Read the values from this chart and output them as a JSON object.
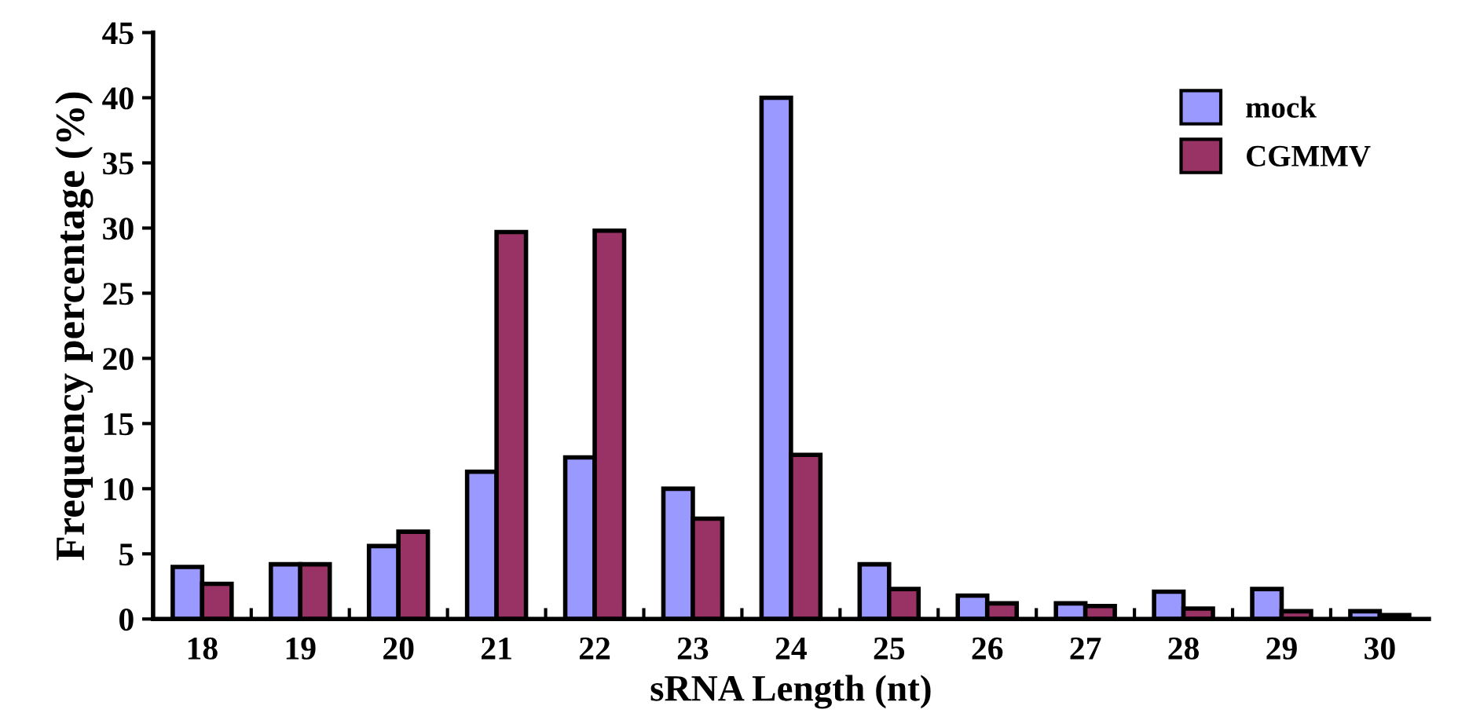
{
  "chart_data": {
    "type": "bar",
    "xlabel": "sRNA Length (nt)",
    "ylabel": "Frequency percentage (%)",
    "categories": [
      "18",
      "19",
      "20",
      "21",
      "22",
      "23",
      "24",
      "25",
      "26",
      "27",
      "28",
      "29",
      "30"
    ],
    "series": [
      {
        "name": "mock",
        "color": "#9999ff",
        "values": [
          4.0,
          4.2,
          5.6,
          11.3,
          12.4,
          10.0,
          40.0,
          4.2,
          1.8,
          1.2,
          2.1,
          2.3,
          0.6
        ]
      },
      {
        "name": "CGMMV",
        "color": "#993366",
        "values": [
          2.7,
          4.2,
          6.7,
          29.7,
          29.8,
          7.7,
          12.6,
          2.3,
          1.2,
          1.0,
          0.8,
          0.6,
          0.3
        ]
      }
    ],
    "ylim": [
      0,
      45
    ],
    "yticks": [
      0,
      5,
      10,
      15,
      20,
      25,
      30,
      35,
      40,
      45
    ],
    "grid": false,
    "legend": "top right"
  }
}
